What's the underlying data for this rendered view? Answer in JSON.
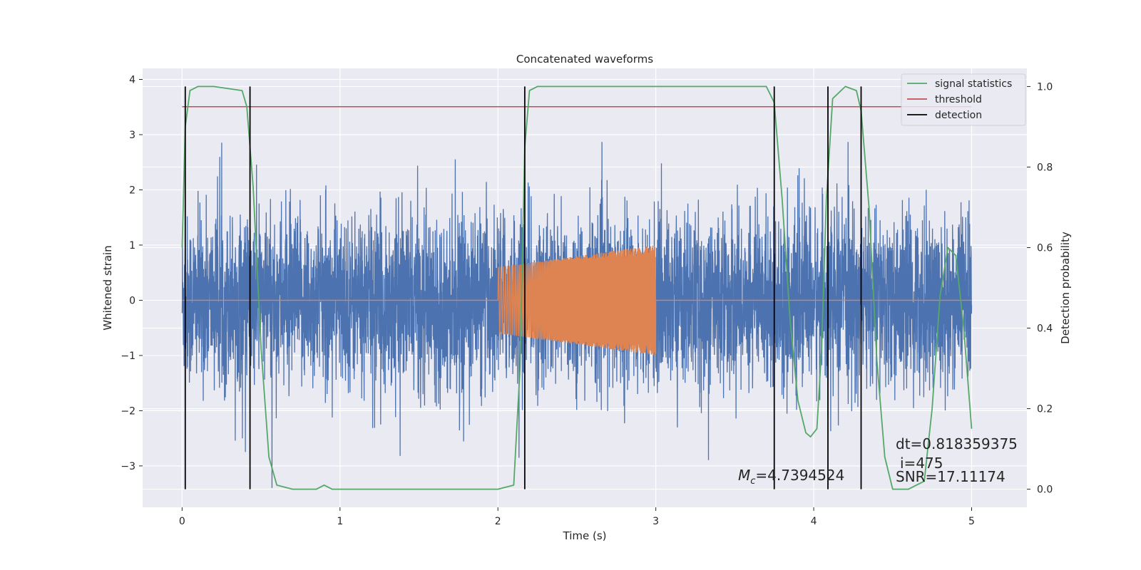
{
  "chart_data": {
    "type": "line",
    "title": "Concatenated waveforms",
    "xlabel": "Time (s)",
    "ylabel": "Whitened strain",
    "ylabel_right": "Detection probability",
    "xlim": [
      -0.25,
      5.35
    ],
    "ylim": [
      -3.75,
      4.2
    ],
    "ylim_right": [
      -0.045,
      1.045
    ],
    "xticks": [
      0,
      1,
      2,
      3,
      4,
      5
    ],
    "xtick_labels": [
      "0",
      "1",
      "2",
      "3",
      "4",
      "5"
    ],
    "yticks": [
      -3,
      -2,
      -1,
      0,
      1,
      2,
      3,
      4
    ],
    "ytick_labels": [
      "−3",
      "−2",
      "−1",
      "0",
      "1",
      "2",
      "3",
      "4"
    ],
    "yticks_right": [
      0.0,
      0.2,
      0.4,
      0.6,
      0.8,
      1.0
    ],
    "ytick_labels_right": [
      "0.0",
      "0.2",
      "0.4",
      "0.6",
      "0.8",
      "1.0"
    ],
    "grid": true,
    "legend_position": "top-right",
    "colors": {
      "noise": "#4c72b0",
      "injected": "#dd8452",
      "statistic": "#55a868",
      "threshold": "#c44e52",
      "detection": "#000000",
      "axes_bg": "#eaeaf2",
      "grid": "#ffffff"
    },
    "series": [
      {
        "role": "noise",
        "x_range": [
          0,
          5
        ],
        "amplitude_envelope": 3.8,
        "typical_std": 0.75
      },
      {
        "role": "injected",
        "x_range": [
          2,
          3
        ],
        "amplitude_start": 0.6,
        "amplitude_end": 1.0
      },
      {
        "role": "statistic",
        "name": "signal statistics",
        "x": [
          0.0,
          0.02,
          0.05,
          0.1,
          0.2,
          0.38,
          0.41,
          0.45,
          0.5,
          0.55,
          0.6,
          0.7,
          0.85,
          0.9,
          0.95,
          1.0,
          1.5,
          2.0,
          2.1,
          2.14,
          2.17,
          2.2,
          2.25,
          2.4,
          3.7,
          3.75,
          3.8,
          3.85,
          3.9,
          3.95,
          3.98,
          4.02,
          4.05,
          4.08,
          4.12,
          4.2,
          4.27,
          4.3,
          4.35,
          4.4,
          4.45,
          4.5,
          4.6,
          4.7,
          4.75,
          4.8,
          4.85,
          4.9,
          4.95,
          5.0
        ],
        "y": [
          0.6,
          0.9,
          0.99,
          1.0,
          1.0,
          0.99,
          0.95,
          0.75,
          0.35,
          0.08,
          0.01,
          0.0,
          0.0,
          0.01,
          0.0,
          0.0,
          0.0,
          0.0,
          0.01,
          0.3,
          0.85,
          0.99,
          1.0,
          1.0,
          1.0,
          0.96,
          0.72,
          0.42,
          0.22,
          0.14,
          0.13,
          0.15,
          0.35,
          0.72,
          0.97,
          1.0,
          0.99,
          0.94,
          0.7,
          0.32,
          0.08,
          0.0,
          0.0,
          0.02,
          0.2,
          0.48,
          0.6,
          0.58,
          0.4,
          0.15
        ]
      },
      {
        "role": "threshold",
        "name": "threshold",
        "x": [
          0,
          5
        ],
        "y": [
          0.95,
          0.95
        ]
      },
      {
        "role": "detection",
        "name": "detection",
        "x": [
          0.02,
          0.43,
          2.17,
          3.75,
          4.09,
          4.3
        ]
      }
    ],
    "legend": [
      "signal statistics",
      "threshold",
      "detection"
    ],
    "annotations": {
      "mc_symbol": "M",
      "mc_subscript": "c",
      "mc_value": "=4.7394524",
      "dt": "dt=0.818359375",
      "i": "i=475",
      "snr": "SNR=17.11174"
    }
  }
}
